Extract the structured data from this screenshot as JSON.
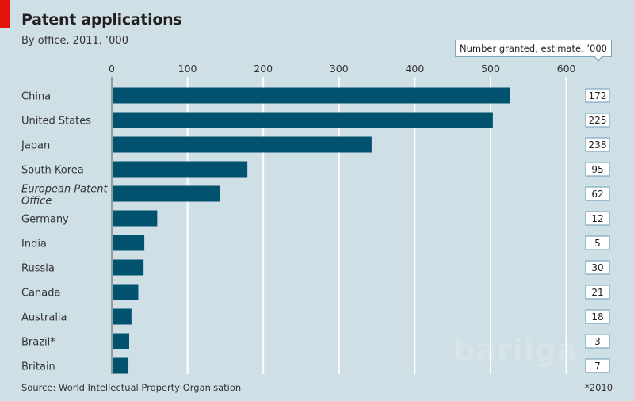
{
  "chart_data": {
    "type": "bar",
    "orientation": "horizontal",
    "title": "Patent applications",
    "subtitle": "By office, 2011, ’000",
    "xlabel": "",
    "ylabel": "",
    "xlim": [
      0,
      650
    ],
    "x_ticks": [
      0,
      100,
      200,
      300,
      400,
      500,
      600
    ],
    "x_tick_labels": [
      "0",
      "100",
      "200",
      "300",
      "400",
      "500",
      "600"
    ],
    "grid": true,
    "categories": [
      "China",
      "United States",
      "Japan",
      "South Korea",
      "European Patent Office",
      "Germany",
      "India",
      "Russia",
      "Canada",
      "Australia",
      "Brazil*",
      "Britain"
    ],
    "category_labels_display": [
      [
        "China"
      ],
      [
        "United States"
      ],
      [
        "Japan"
      ],
      [
        "South Korea"
      ],
      [
        "European Patent",
        "Office"
      ],
      [
        "Germany"
      ],
      [
        "India"
      ],
      [
        "Russia"
      ],
      [
        "Canada"
      ],
      [
        "Australia"
      ],
      [
        "Brazil*"
      ],
      [
        "Britain"
      ]
    ],
    "italic_categories": [
      "European Patent Office"
    ],
    "series": [
      {
        "name": "Patent applications, 2011, '000",
        "values": [
          526,
          503,
          343,
          179,
          143,
          60,
          43,
          42,
          35,
          26,
          23,
          22
        ],
        "color": "#00526f"
      }
    ],
    "annotation_column": {
      "label": "Number granted, estimate, ’000",
      "values": [
        "172",
        "225",
        "238",
        "95",
        "62",
        "12",
        "5",
        "30",
        "21",
        "18",
        "3",
        "7"
      ]
    },
    "source": "Source: World Intellectual Property Organisation",
    "footnote": "*2010"
  },
  "colors": {
    "background": "#cfdfe6",
    "bar": "#00526f",
    "accent": "#e3120b",
    "gridline": "#ffffff"
  },
  "watermark": "barilga"
}
